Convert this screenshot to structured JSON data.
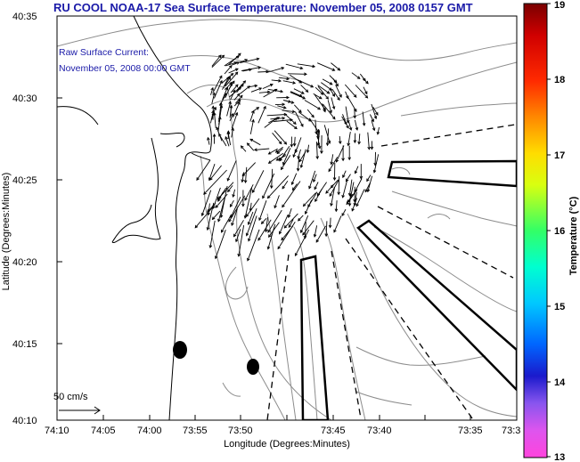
{
  "title": "RU COOL  NOAA-17  Sea Surface Temperature:  November 05, 2008 0157 GMT",
  "subtitle_line1": "Raw Surface Current:",
  "subtitle_line2": "November 05, 2008 00:00 GMT",
  "scale_label": "50 cm/s",
  "x_axis_label": "Longitude (Degrees:Minutes)",
  "y_axis_label": "Latitude (Degrees:Minutes)",
  "x_ticks": [
    "74:10",
    "74:05",
    "74:00",
    "73:55",
    "73:50",
    "73:45",
    "73:40",
    "73:35",
    "73:3"
  ],
  "y_ticks": [
    "40:35",
    "40:30",
    "40:25",
    "40:20",
    "40:15",
    "40:10"
  ],
  "colorbar": {
    "label": "Temperature (°C)",
    "ticks": [
      "19",
      "18",
      "17",
      "16",
      "15",
      "14",
      "13"
    ]
  },
  "colors": {
    "title": "#1a1aa8",
    "land_outline": "#000000",
    "bathymetry": "#8c8c8c",
    "vectors": "#000000"
  }
}
